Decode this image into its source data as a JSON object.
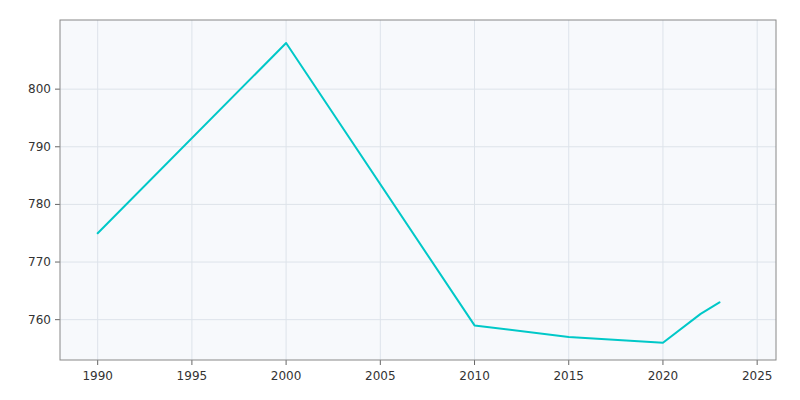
{
  "chart_data": {
    "type": "line",
    "x": [
      1990,
      2000,
      2010,
      2015,
      2020,
      2022,
      2023
    ],
    "values": [
      775,
      808,
      759,
      757,
      756,
      761,
      763
    ],
    "color": "#00C8C8",
    "xlim": [
      1988,
      2026
    ],
    "ylim": [
      753,
      812
    ],
    "xticks": [
      1990,
      1995,
      2000,
      2005,
      2010,
      2015,
      2020,
      2025
    ],
    "yticks": [
      760,
      770,
      780,
      790,
      800
    ],
    "grid": true
  }
}
